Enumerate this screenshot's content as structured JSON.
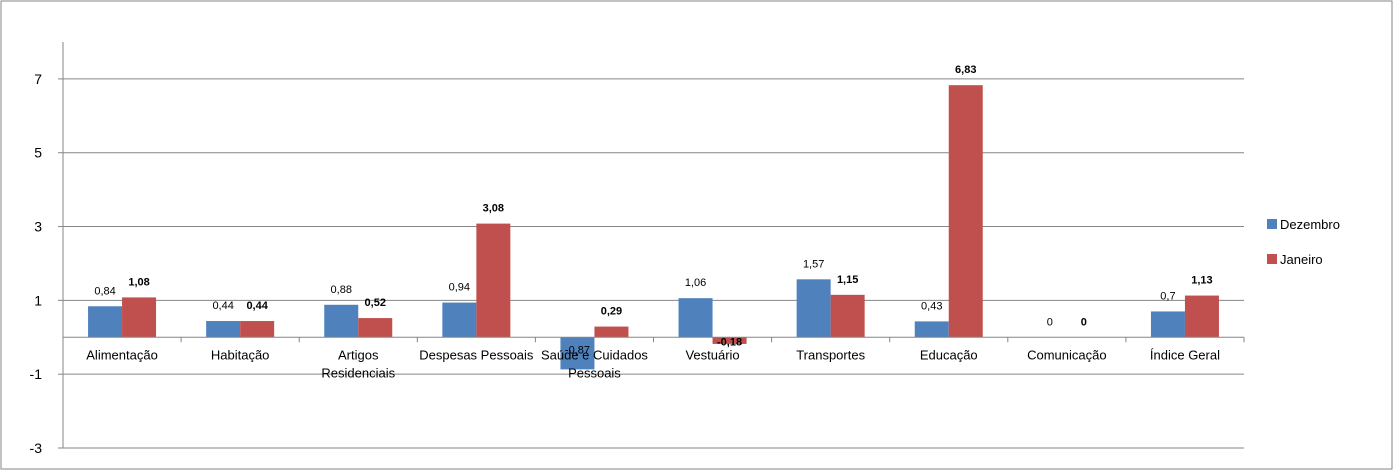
{
  "chart_data": {
    "type": "bar",
    "categories": [
      "Alimentação",
      "Habitação",
      "Artigos Residenciais",
      "Despesas Pessoais",
      "Saúde e Cuidados Pessoais",
      "Vestuário",
      "Transportes",
      "Educação",
      "Comunicação",
      "Índice Geral"
    ],
    "series": [
      {
        "name": "Dezembro",
        "values": [
          0.84,
          0.44,
          0.88,
          0.94,
          -0.87,
          1.06,
          1.57,
          0.43,
          0,
          0.7
        ],
        "labels": [
          "0,84",
          "0,44",
          "0,88",
          "0,94",
          "-0,87",
          "1,06",
          "1,57",
          "0,43",
          "0",
          "0,7"
        ],
        "color": "#4F81BD"
      },
      {
        "name": "Janeiro",
        "values": [
          1.08,
          0.44,
          0.52,
          3.08,
          0.29,
          -0.18,
          1.15,
          6.83,
          0,
          1.13
        ],
        "labels": [
          "1,08",
          "0,44",
          "0,52",
          "3,08",
          "0,29",
          "-0,18",
          "1,15",
          "6,83",
          "0",
          "1,13"
        ],
        "color": "#C0504D"
      }
    ],
    "yticks": [
      -3,
      -1,
      1,
      3,
      5,
      7
    ],
    "ylim": [
      -3,
      8
    ],
    "grid": true,
    "legend_position": "right"
  }
}
